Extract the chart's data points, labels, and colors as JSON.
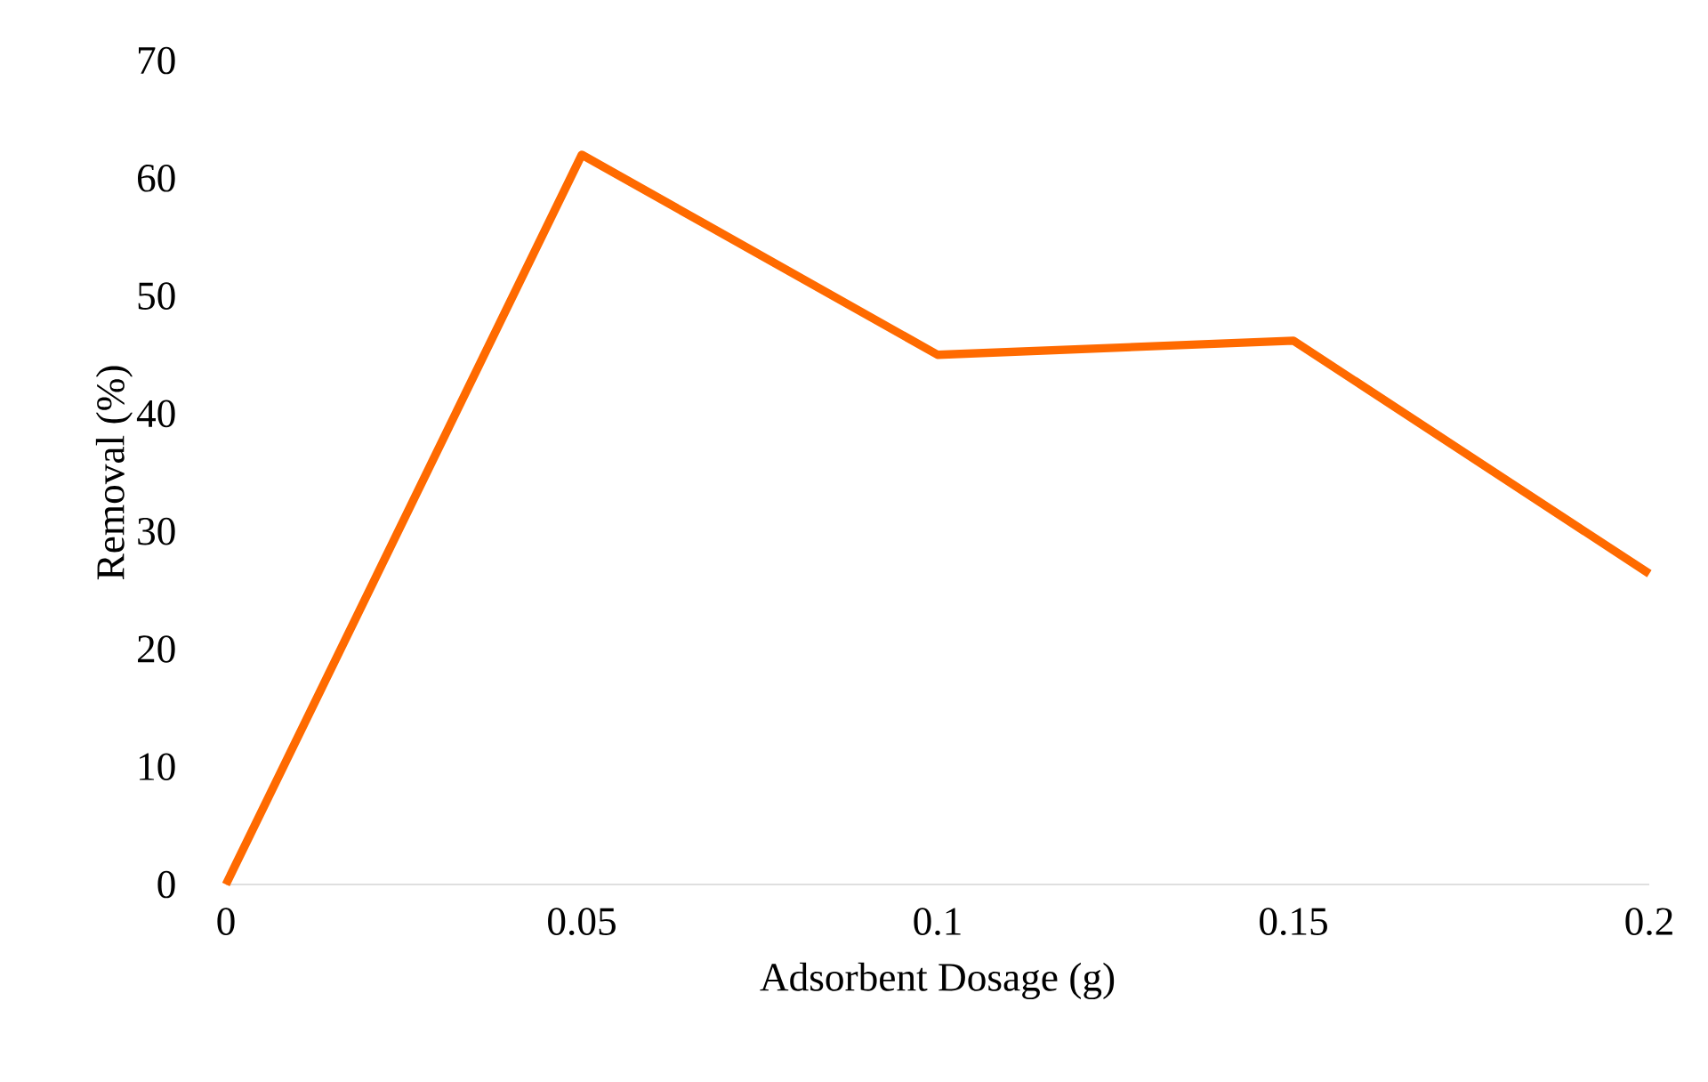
{
  "chart_data": {
    "type": "line",
    "xlabel": "Adsorbent Dosage (g)",
    "ylabel": "Removal (%)",
    "x": [
      0,
      0.05,
      0.1,
      0.15,
      0.2
    ],
    "series": [
      {
        "color": "#ff6a00",
        "values": [
          0,
          62,
          45,
          46.2,
          26.4
        ]
      }
    ],
    "xlim": [
      0,
      0.2
    ],
    "xticks": [
      0,
      0.05,
      0.1,
      0.15,
      0.2
    ],
    "ylim": [
      0,
      70
    ],
    "yticks": [
      0,
      10,
      20,
      30,
      40,
      50,
      60,
      70
    ],
    "grid": false,
    "marker": "none",
    "line_style": "solid"
  }
}
